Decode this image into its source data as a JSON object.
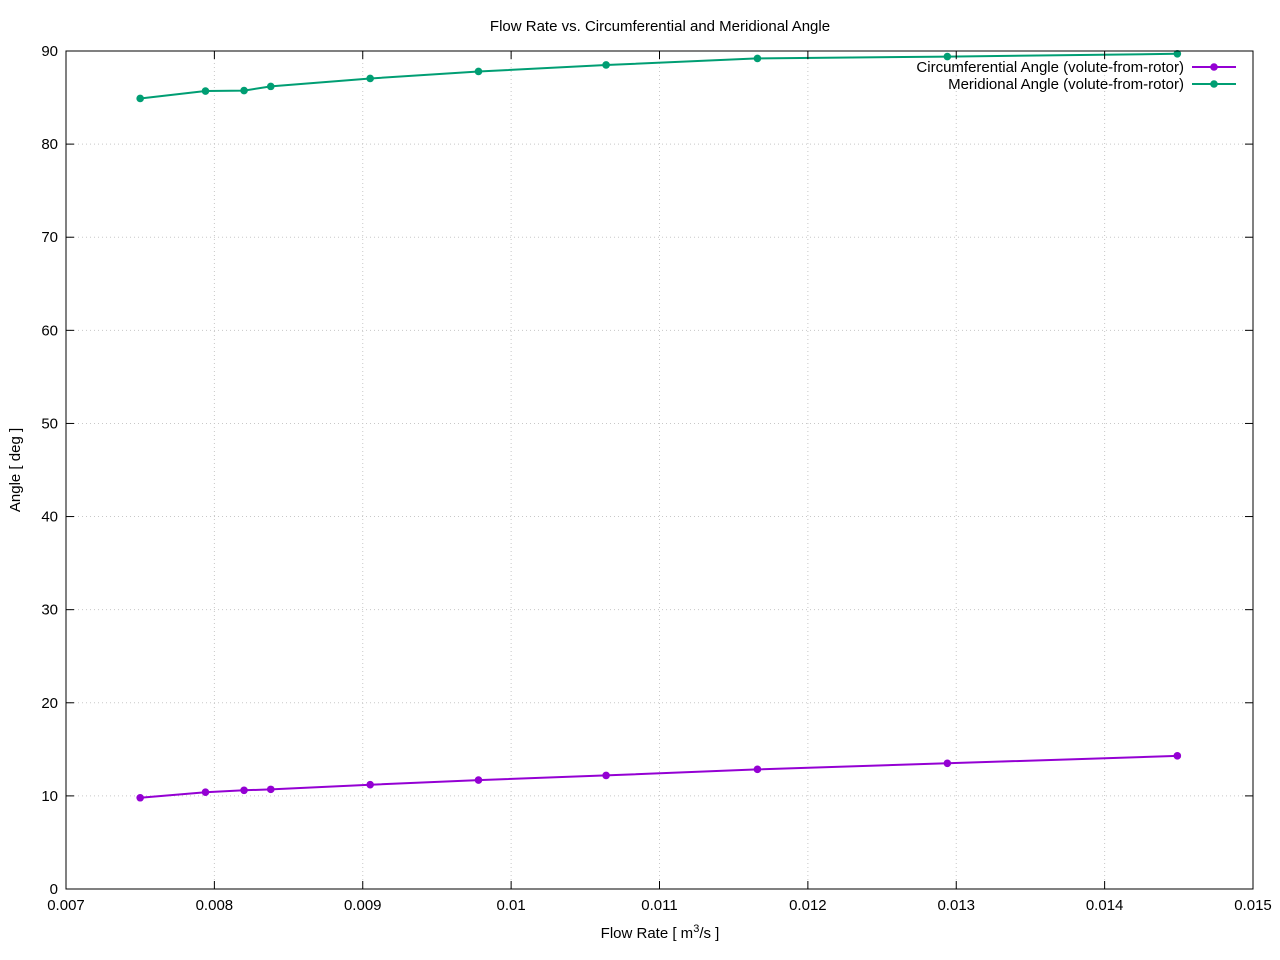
{
  "chart_data": {
    "type": "line",
    "title": "Flow Rate vs. Circumferential and Meridional Angle",
    "xlabel": "Flow Rate [ m³/s ]",
    "xlabel_parts": {
      "prefix": "Flow Rate [ m",
      "sup": "3",
      "suffix": "/s ]"
    },
    "ylabel": "Angle [ deg ]",
    "xlim": [
      0.007,
      0.015
    ],
    "ylim": [
      0,
      90
    ],
    "xticks": [
      0.007,
      0.008,
      0.009,
      0.01,
      0.011,
      0.012,
      0.013,
      0.014,
      0.015
    ],
    "xtick_labels": [
      "0.007",
      "0.008",
      "0.009",
      "0.01",
      "0.011",
      "0.012",
      "0.013",
      "0.014",
      "0.015"
    ],
    "yticks": [
      0,
      10,
      20,
      30,
      40,
      50,
      60,
      70,
      80,
      90
    ],
    "ytick_labels": [
      "0",
      "10",
      "20",
      "30",
      "40",
      "50",
      "60",
      "70",
      "80",
      "90"
    ],
    "grid": true,
    "legend_position": "top-right",
    "series": [
      {
        "name": "Circumferential Angle (volute-from-rotor)",
        "color": "#9400d3",
        "x": [
          0.0075,
          0.00794,
          0.0082,
          0.00838,
          0.00905,
          0.00978,
          0.01064,
          0.01166,
          0.01294,
          0.01449
        ],
        "y": [
          9.8,
          10.4,
          10.6,
          10.7,
          11.2,
          11.7,
          12.2,
          12.85,
          13.5,
          14.3
        ]
      },
      {
        "name": "Meridional Angle (volute-from-rotor)",
        "color": "#009e73",
        "x": [
          0.0075,
          0.00794,
          0.0082,
          0.00838,
          0.00905,
          0.00978,
          0.01064,
          0.01166,
          0.01294,
          0.01449
        ],
        "y": [
          84.9,
          85.7,
          85.75,
          86.2,
          87.05,
          87.8,
          88.5,
          89.2,
          89.4,
          89.7
        ]
      }
    ]
  }
}
